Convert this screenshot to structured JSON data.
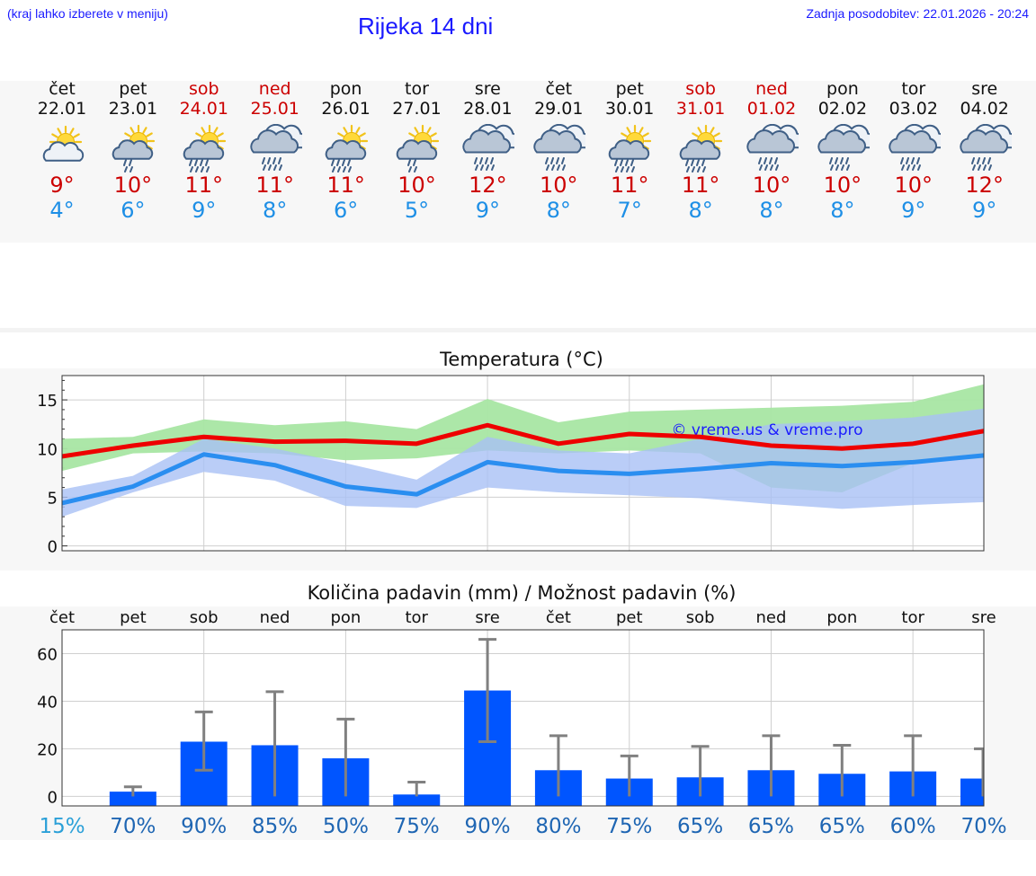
{
  "header": {
    "menu_hint": "(kraj lahko izberete v meniju)",
    "title": "Rijeka 14 dni",
    "last_update": "Zadnja posodobitev: 22.01.2026 - 20:24"
  },
  "forecast": {
    "days": [
      {
        "name": "čet",
        "date": "22.01",
        "weekend": false,
        "icon": "partly-sunny-icon",
        "max": "9°",
        "min": "4°"
      },
      {
        "name": "pet",
        "date": "23.01",
        "weekend": false,
        "icon": "sun-cloud-light-rain-icon",
        "max": "10°",
        "min": "6°"
      },
      {
        "name": "sob",
        "date": "24.01",
        "weekend": true,
        "icon": "sun-cloud-rain-icon",
        "max": "11°",
        "min": "9°"
      },
      {
        "name": "ned",
        "date": "25.01",
        "weekend": true,
        "icon": "cloud-rain-icon",
        "max": "11°",
        "min": "8°"
      },
      {
        "name": "pon",
        "date": "26.01",
        "weekend": false,
        "icon": "sun-cloud-rain-icon",
        "max": "11°",
        "min": "6°"
      },
      {
        "name": "tor",
        "date": "27.01",
        "weekend": false,
        "icon": "sun-cloud-light-rain-icon",
        "max": "10°",
        "min": "5°"
      },
      {
        "name": "sre",
        "date": "28.01",
        "weekend": false,
        "icon": "cloud-rain-icon",
        "max": "12°",
        "min": "9°"
      },
      {
        "name": "čet",
        "date": "29.01",
        "weekend": false,
        "icon": "cloud-rain-icon",
        "max": "10°",
        "min": "8°"
      },
      {
        "name": "pet",
        "date": "30.01",
        "weekend": false,
        "icon": "sun-cloud-rain-icon",
        "max": "11°",
        "min": "7°"
      },
      {
        "name": "sob",
        "date": "31.01",
        "weekend": true,
        "icon": "sun-cloud-rain-icon",
        "max": "11°",
        "min": "8°"
      },
      {
        "name": "ned",
        "date": "01.02",
        "weekend": true,
        "icon": "cloud-rain-icon",
        "max": "10°",
        "min": "8°"
      },
      {
        "name": "pon",
        "date": "02.02",
        "weekend": false,
        "icon": "cloud-rain-icon",
        "max": "10°",
        "min": "8°"
      },
      {
        "name": "tor",
        "date": "03.02",
        "weekend": false,
        "icon": "cloud-rain-icon",
        "max": "10°",
        "min": "9°"
      },
      {
        "name": "sre",
        "date": "04.02",
        "weekend": false,
        "icon": "cloud-rain-icon",
        "max": "12°",
        "min": "9°"
      }
    ]
  },
  "colors": {
    "title_blue": "#1a1aff",
    "weekend_red": "#cc0000",
    "max_line": "#ee0000",
    "min_line": "#2a8ef0",
    "max_band": "#a8e6a3",
    "min_band": "#a9c0f5",
    "overlap_band": "#7dbfa8",
    "bar_blue": "#0055ff"
  },
  "chart_data": [
    {
      "type": "line",
      "title": "Temperatura (°C)",
      "watermark": "© vreme.us & vreme.pro",
      "ylim": [
        -0.5,
        17.5
      ],
      "yticks": [
        "0",
        "5",
        "10",
        "15"
      ],
      "ytick_values": [
        0,
        5,
        10,
        15
      ],
      "x": [
        0,
        1,
        2,
        3,
        4,
        5,
        6,
        7,
        8,
        9,
        10,
        11,
        12,
        13
      ],
      "series": [
        {
          "name": "max",
          "values": [
            9.2,
            10.3,
            11.2,
            10.7,
            10.8,
            10.5,
            12.4,
            10.5,
            11.5,
            11.2,
            10.3,
            10.0,
            10.5,
            11.8
          ],
          "band_low": [
            7.7,
            9.5,
            9.7,
            9.5,
            8.8,
            9.0,
            9.8,
            9.5,
            9.8,
            9.5,
            6.0,
            5.5,
            8.5,
            9.0
          ],
          "band_high": [
            11.0,
            11.2,
            13.0,
            12.4,
            12.8,
            12.0,
            15.1,
            12.7,
            13.8,
            14.0,
            14.2,
            14.4,
            14.8,
            16.6
          ]
        },
        {
          "name": "min",
          "values": [
            4.4,
            6.1,
            9.4,
            8.3,
            6.1,
            5.3,
            8.6,
            7.7,
            7.4,
            7.9,
            8.5,
            8.2,
            8.6,
            9.3
          ],
          "band_low": [
            3.0,
            5.5,
            7.6,
            6.7,
            4.1,
            3.9,
            6.0,
            5.5,
            5.2,
            4.9,
            4.3,
            3.8,
            4.2,
            4.5
          ],
          "band_high": [
            5.8,
            7.2,
            11.0,
            10.0,
            8.5,
            6.8,
            11.2,
            9.8,
            9.5,
            11.0,
            12.5,
            12.8,
            13.2,
            14.1
          ]
        }
      ]
    },
    {
      "type": "bar",
      "title": "Količina padavin (mm) / Možnost padavin (%)",
      "categories": [
        "čet",
        "pet",
        "sob",
        "ned",
        "pon",
        "tor",
        "sre",
        "čet",
        "pet",
        "sob",
        "ned",
        "pon",
        "tor",
        "sre"
      ],
      "values": [
        0,
        2,
        23,
        21.5,
        16,
        0.8,
        44.5,
        11,
        7.5,
        8,
        11,
        9.5,
        10.5,
        7.5
      ],
      "err_low": [
        0,
        0,
        11,
        0,
        0,
        0,
        23,
        0,
        0,
        0,
        0,
        0,
        0,
        0
      ],
      "err_high": [
        0,
        4,
        35.5,
        44,
        32.5,
        6,
        66,
        25.5,
        17,
        21,
        25.5,
        21.5,
        25.5,
        20
      ],
      "probabilities": [
        "15%",
        "70%",
        "90%",
        "85%",
        "50%",
        "75%",
        "90%",
        "80%",
        "75%",
        "65%",
        "65%",
        "65%",
        "60%",
        "70%"
      ],
      "ylim": [
        -4,
        70
      ],
      "yticks": [
        "0",
        "20",
        "40",
        "60"
      ],
      "ytick_values": [
        0,
        20,
        40,
        60
      ]
    }
  ]
}
